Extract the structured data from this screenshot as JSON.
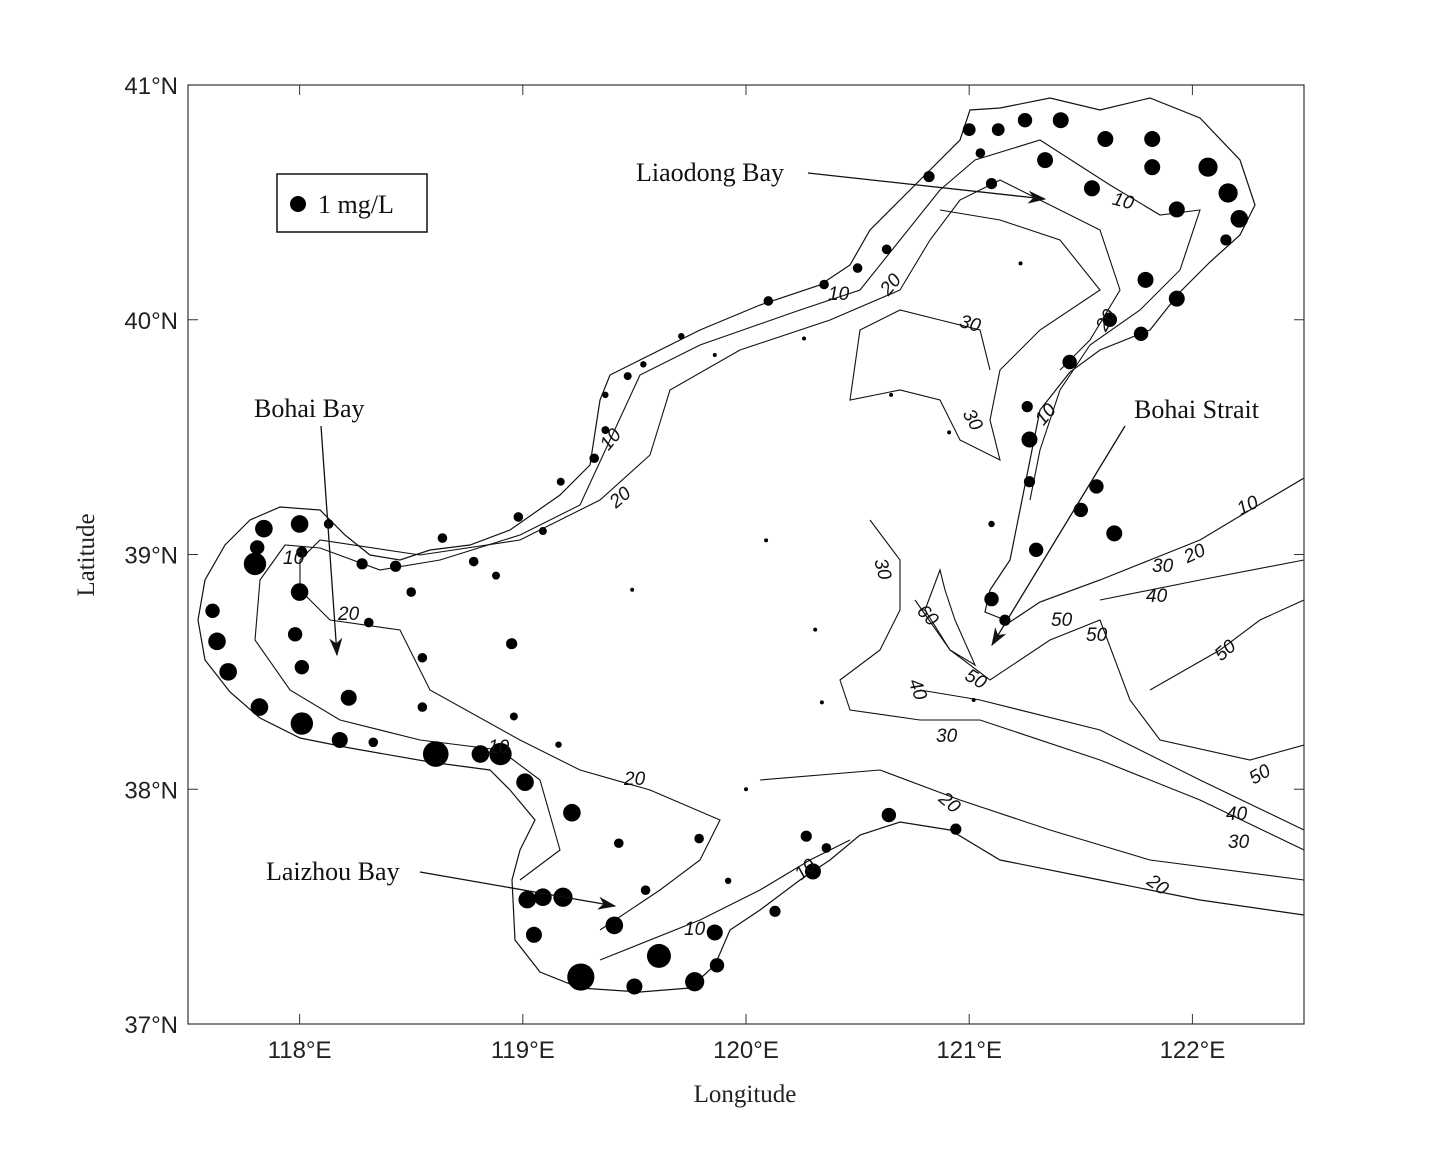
{
  "chart_data": {
    "type": "scatter",
    "xlabel": "Longitude",
    "ylabel": "Latitude",
    "xlim": [
      117.5,
      122.5
    ],
    "ylim": [
      37,
      41
    ],
    "x_ticks": [
      "118°E",
      "119°E",
      "120°E",
      "121°E",
      "122°E"
    ],
    "x_tick_values": [
      118,
      119,
      120,
      121,
      122
    ],
    "y_ticks": [
      "37°N",
      "38°N",
      "39°N",
      "40°N",
      "41°N"
    ],
    "y_tick_values": [
      37,
      38,
      39,
      40,
      41
    ],
    "legend": {
      "label": "1 mg/L",
      "value": 1,
      "placement": "top-left"
    },
    "point_color": "#000000",
    "grid": false,
    "annotations": [
      "Liaodong Bay",
      "Bohai Bay",
      "Laizhou Bay",
      "Bohai Strait"
    ],
    "contour_labels": [
      "10",
      "20",
      "30",
      "30",
      "10",
      "20",
      "10",
      "10",
      "20",
      "10",
      "20",
      "10",
      "20",
      "30",
      "60",
      "50",
      "50",
      "50",
      "40",
      "30",
      "20",
      "50",
      "40",
      "30",
      "20",
      "10",
      "10",
      "10",
      "20",
      "30",
      "40",
      "50"
    ],
    "points": [
      [
        121.0,
        40.81,
        0.8
      ],
      [
        121.13,
        40.81,
        0.8
      ],
      [
        121.25,
        40.85,
        0.9
      ],
      [
        121.41,
        40.85,
        1.0
      ],
      [
        121.61,
        40.77,
        1.0
      ],
      [
        121.82,
        40.77,
        1.0
      ],
      [
        121.05,
        40.71,
        0.6
      ],
      [
        121.34,
        40.68,
        1.0
      ],
      [
        121.82,
        40.65,
        1.0
      ],
      [
        122.07,
        40.65,
        1.2
      ],
      [
        120.82,
        40.61,
        0.7
      ],
      [
        121.1,
        40.58,
        0.7
      ],
      [
        121.55,
        40.56,
        1.0
      ],
      [
        122.16,
        40.54,
        1.2
      ],
      [
        121.93,
        40.47,
        1.0
      ],
      [
        122.21,
        40.43,
        1.1
      ],
      [
        122.15,
        40.34,
        0.7
      ],
      [
        120.63,
        40.3,
        0.6
      ],
      [
        120.5,
        40.22,
        0.6
      ],
      [
        121.79,
        40.17,
        1.0
      ],
      [
        121.93,
        40.09,
        1.0
      ],
      [
        120.35,
        40.15,
        0.6
      ],
      [
        120.1,
        40.08,
        0.6
      ],
      [
        121.63,
        40.0,
        0.9
      ],
      [
        121.77,
        39.94,
        0.9
      ],
      [
        119.71,
        39.93,
        0.4
      ],
      [
        121.45,
        39.82,
        0.9
      ],
      [
        119.47,
        39.76,
        0.5
      ],
      [
        119.54,
        39.81,
        0.4
      ],
      [
        121.26,
        39.63,
        0.7
      ],
      [
        119.37,
        39.68,
        0.4
      ],
      [
        121.27,
        39.49,
        1.0
      ],
      [
        119.37,
        39.53,
        0.5
      ],
      [
        119.32,
        39.41,
        0.6
      ],
      [
        119.17,
        39.31,
        0.5
      ],
      [
        121.27,
        39.31,
        0.7
      ],
      [
        121.57,
        39.29,
        0.9
      ],
      [
        121.5,
        39.19,
        0.9
      ],
      [
        121.65,
        39.09,
        1.0
      ],
      [
        118.98,
        39.16,
        0.6
      ],
      [
        119.09,
        39.1,
        0.5
      ],
      [
        118.13,
        39.13,
        0.6
      ],
      [
        121.1,
        39.13,
        0.4
      ],
      [
        118.64,
        39.07,
        0.6
      ],
      [
        117.84,
        39.11,
        1.1
      ],
      [
        118.0,
        39.13,
        1.1
      ],
      [
        117.81,
        39.03,
        0.9
      ],
      [
        121.3,
        39.02,
        0.9
      ],
      [
        118.28,
        38.96,
        0.7
      ],
      [
        118.43,
        38.95,
        0.7
      ],
      [
        118.78,
        38.97,
        0.6
      ],
      [
        118.01,
        39.01,
        0.7
      ],
      [
        117.8,
        38.96,
        1.4
      ],
      [
        118.5,
        38.84,
        0.6
      ],
      [
        118.88,
        38.91,
        0.5
      ],
      [
        118.0,
        38.84,
        1.1
      ],
      [
        121.1,
        38.81,
        0.9
      ],
      [
        117.61,
        38.76,
        0.9
      ],
      [
        121.16,
        38.72,
        0.7
      ],
      [
        118.31,
        38.71,
        0.6
      ],
      [
        118.95,
        38.62,
        0.7
      ],
      [
        117.98,
        38.66,
        0.9
      ],
      [
        117.63,
        38.63,
        1.1
      ],
      [
        118.01,
        38.52,
        0.9
      ],
      [
        118.55,
        38.56,
        0.6
      ],
      [
        117.68,
        38.5,
        1.1
      ],
      [
        118.22,
        38.39,
        1.0
      ],
      [
        118.55,
        38.35,
        0.6
      ],
      [
        117.82,
        38.35,
        1.1
      ],
      [
        118.01,
        38.28,
        1.4
      ],
      [
        118.96,
        38.31,
        0.5
      ],
      [
        118.18,
        38.21,
        1.0
      ],
      [
        118.33,
        38.2,
        0.6
      ],
      [
        118.61,
        38.15,
        1.6
      ],
      [
        118.81,
        38.15,
        1.1
      ],
      [
        118.9,
        38.15,
        1.4
      ],
      [
        119.16,
        38.19,
        0.4
      ],
      [
        119.01,
        38.03,
        1.1
      ],
      [
        119.22,
        37.9,
        1.1
      ],
      [
        120.64,
        37.89,
        0.9
      ],
      [
        119.43,
        37.77,
        0.6
      ],
      [
        120.27,
        37.8,
        0.7
      ],
      [
        120.94,
        37.83,
        0.7
      ],
      [
        119.79,
        37.79,
        0.6
      ],
      [
        120.36,
        37.75,
        0.6
      ],
      [
        120.3,
        37.65,
        1.0
      ],
      [
        119.55,
        37.57,
        0.6
      ],
      [
        119.02,
        37.53,
        1.1
      ],
      [
        119.09,
        37.54,
        1.1
      ],
      [
        119.18,
        37.54,
        1.2
      ],
      [
        119.92,
        37.61,
        0.4
      ],
      [
        119.41,
        37.42,
        1.1
      ],
      [
        120.13,
        37.48,
        0.7
      ],
      [
        119.05,
        37.38,
        1.0
      ],
      [
        119.86,
        37.39,
        1.0
      ],
      [
        119.61,
        37.29,
        1.5
      ],
      [
        119.87,
        37.25,
        0.9
      ],
      [
        119.26,
        37.2,
        1.7
      ],
      [
        119.5,
        37.16,
        1.0
      ],
      [
        119.77,
        37.18,
        1.2
      ],
      [
        121.23,
        40.24,
        0.25
      ],
      [
        119.86,
        39.85,
        0.25
      ],
      [
        120.26,
        39.92,
        0.25
      ],
      [
        120.65,
        39.68,
        0.25
      ],
      [
        119.49,
        38.85,
        0.25
      ],
      [
        120.09,
        39.06,
        0.25
      ],
      [
        120.31,
        38.68,
        0.25
      ],
      [
        120.34,
        38.37,
        0.25
      ],
      [
        120.0,
        38.0,
        0.25
      ],
      [
        120.91,
        39.52,
        0.25
      ],
      [
        121.02,
        38.38,
        0.25
      ]
    ]
  }
}
